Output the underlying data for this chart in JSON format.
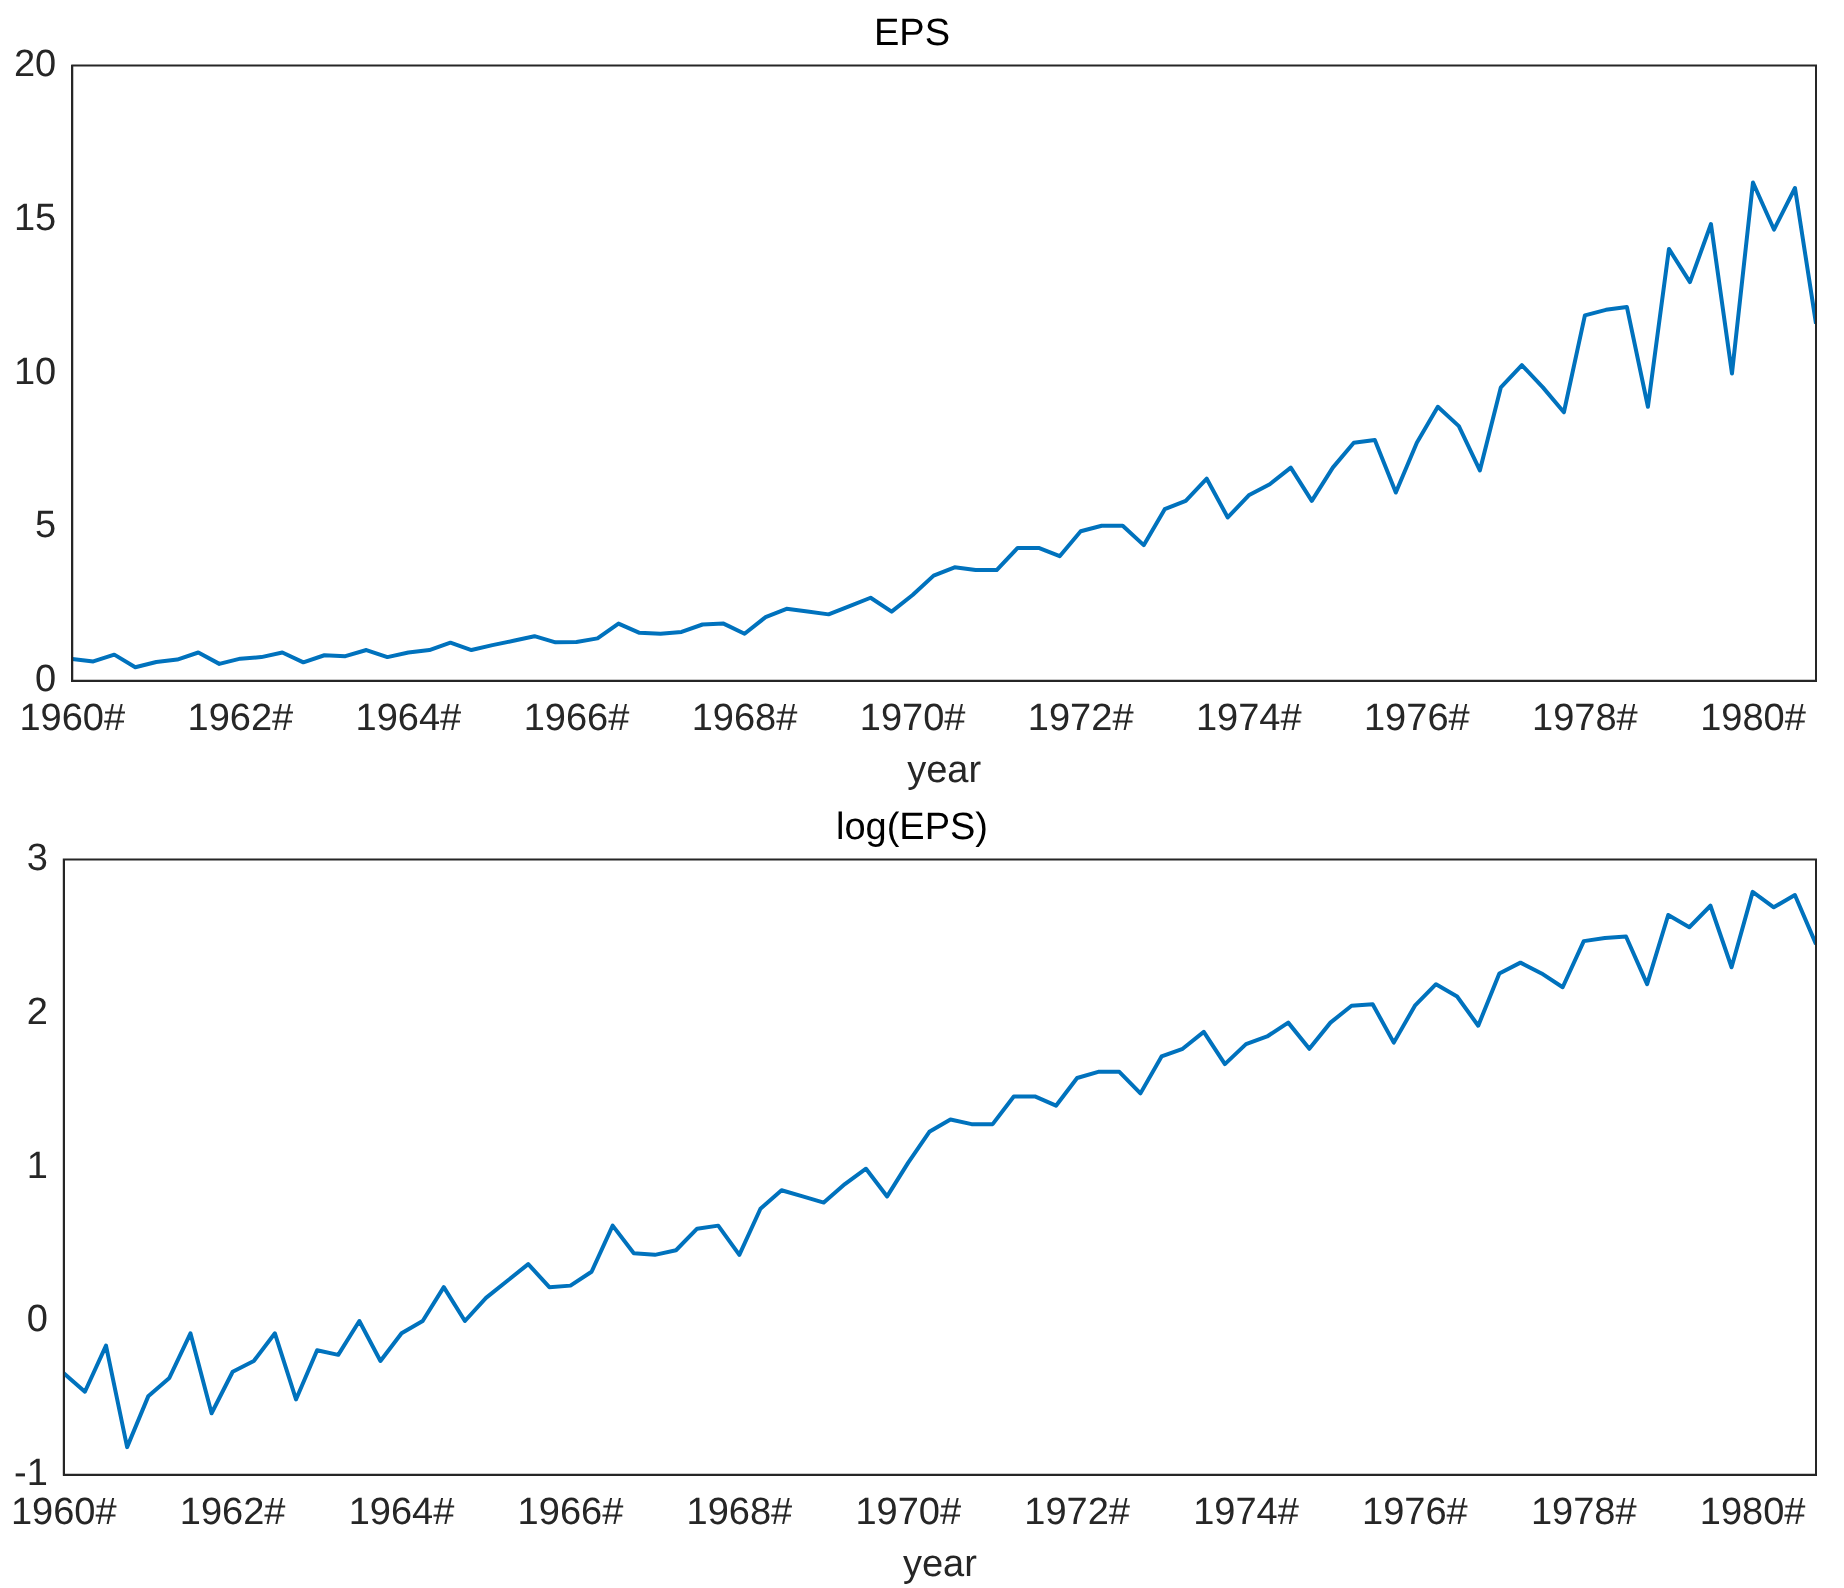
{
  "chart_data": [
    {
      "type": "line",
      "title": "EPS",
      "xlabel": "year",
      "x": [
        1960,
        1960.25,
        1960.5,
        1960.75,
        1961,
        1961.25,
        1961.5,
        1961.75,
        1962,
        1962.25,
        1962.5,
        1962.75,
        1963,
        1963.25,
        1963.5,
        1963.75,
        1964,
        1964.25,
        1964.5,
        1964.75,
        1965,
        1965.25,
        1965.5,
        1965.75,
        1966,
        1966.25,
        1966.5,
        1966.75,
        1967,
        1967.25,
        1967.5,
        1967.75,
        1968,
        1968.25,
        1968.5,
        1968.75,
        1969,
        1969.25,
        1969.5,
        1969.75,
        1970,
        1970.25,
        1970.5,
        1970.75,
        1971,
        1971.25,
        1971.5,
        1971.75,
        1972,
        1972.25,
        1972.5,
        1972.75,
        1973,
        1973.25,
        1973.5,
        1973.75,
        1974,
        1974.25,
        1974.5,
        1974.75,
        1975,
        1975.25,
        1975.5,
        1975.75,
        1976,
        1976.25,
        1976.5,
        1976.75,
        1977,
        1977.25,
        1977.5,
        1977.75,
        1978,
        1978.25,
        1978.5,
        1978.75,
        1979,
        1979.25,
        1979.5,
        1979.75,
        1980,
        1980.25,
        1980.5,
        1980.75
      ],
      "series": [
        {
          "color": "#0072bd",
          "values": [
            0.71,
            0.63,
            0.85,
            0.44,
            0.61,
            0.69,
            0.92,
            0.55,
            0.72,
            0.77,
            0.92,
            0.6,
            0.83,
            0.8,
            1.0,
            0.77,
            0.92,
            1.0,
            1.24,
            1.0,
            1.16,
            1.3,
            1.45,
            1.25,
            1.26,
            1.38,
            1.86,
            1.56,
            1.53,
            1.59,
            1.83,
            1.86,
            1.53,
            2.07,
            2.34,
            2.25,
            2.16,
            2.43,
            2.7,
            2.25,
            2.79,
            3.42,
            3.69,
            3.6,
            3.6,
            4.32,
            4.32,
            4.05,
            4.86,
            5.04,
            5.04,
            4.41,
            5.58,
            5.85,
            6.57,
            5.31,
            6.03,
            6.39,
            6.93,
            5.85,
            6.93,
            7.74,
            7.83,
            6.12,
            7.74,
            8.91,
            8.28,
            6.84,
            9.54,
            10.26,
            9.54,
            8.73,
            11.88,
            12.06,
            12.15,
            8.91,
            14.04,
            12.96,
            14.85,
            9.99,
            16.2,
            14.67,
            16.02,
            11.61
          ]
        }
      ],
      "xlim": [
        1960,
        1980.75
      ],
      "xticks": [
        {
          "value": 1960,
          "label": "1960#"
        },
        {
          "value": 1962,
          "label": "1962#"
        },
        {
          "value": 1964,
          "label": "1964#"
        },
        {
          "value": 1966,
          "label": "1966#"
        },
        {
          "value": 1968,
          "label": "1968#"
        },
        {
          "value": 1970,
          "label": "1970#"
        },
        {
          "value": 1972,
          "label": "1972#"
        },
        {
          "value": 1974,
          "label": "1974#"
        },
        {
          "value": 1976,
          "label": "1976#"
        },
        {
          "value": 1978,
          "label": "1978#"
        },
        {
          "value": 1980,
          "label": "1980#"
        }
      ],
      "ylim": [
        0,
        20
      ],
      "yticks": [
        0,
        5,
        10,
        15,
        20
      ],
      "grid": false,
      "legend": false,
      "line_style": "solid",
      "marker": "none"
    },
    {
      "type": "line",
      "title": "log(EPS)",
      "xlabel": "year",
      "x": [
        1960,
        1960.25,
        1960.5,
        1960.75,
        1961,
        1961.25,
        1961.5,
        1961.75,
        1962,
        1962.25,
        1962.5,
        1962.75,
        1963,
        1963.25,
        1963.5,
        1963.75,
        1964,
        1964.25,
        1964.5,
        1964.75,
        1965,
        1965.25,
        1965.5,
        1965.75,
        1966,
        1966.25,
        1966.5,
        1966.75,
        1967,
        1967.25,
        1967.5,
        1967.75,
        1968,
        1968.25,
        1968.5,
        1968.75,
        1969,
        1969.25,
        1969.5,
        1969.75,
        1970,
        1970.25,
        1970.5,
        1970.75,
        1971,
        1971.25,
        1971.5,
        1971.75,
        1972,
        1972.25,
        1972.5,
        1972.75,
        1973,
        1973.25,
        1973.5,
        1973.75,
        1974,
        1974.25,
        1974.5,
        1974.75,
        1975,
        1975.25,
        1975.5,
        1975.75,
        1976,
        1976.25,
        1976.5,
        1976.75,
        1977,
        1977.25,
        1977.5,
        1977.75,
        1978,
        1978.25,
        1978.5,
        1978.75,
        1979,
        1979.25,
        1979.5,
        1979.75,
        1980,
        1980.25,
        1980.5,
        1980.75
      ],
      "series": [
        {
          "color": "#0072bd",
          "values": [
            -0.34,
            -0.46,
            -0.16,
            -0.82,
            -0.49,
            -0.37,
            -0.08,
            -0.6,
            -0.33,
            -0.26,
            -0.08,
            -0.51,
            -0.19,
            -0.22,
            0,
            -0.26,
            -0.08,
            0,
            0.22,
            0,
            0.15,
            0.26,
            0.37,
            0.22,
            0.23,
            0.32,
            0.62,
            0.44,
            0.43,
            0.46,
            0.6,
            0.62,
            0.43,
            0.73,
            0.85,
            0.81,
            0.77,
            0.89,
            0.99,
            0.81,
            1.03,
            1.23,
            1.31,
            1.28,
            1.28,
            1.46,
            1.46,
            1.4,
            1.58,
            1.62,
            1.62,
            1.48,
            1.72,
            1.77,
            1.88,
            1.67,
            1.8,
            1.85,
            1.94,
            1.77,
            1.94,
            2.05,
            2.06,
            1.81,
            2.05,
            2.19,
            2.11,
            1.92,
            2.26,
            2.33,
            2.26,
            2.17,
            2.47,
            2.49,
            2.5,
            2.19,
            2.64,
            2.56,
            2.7,
            2.3,
            2.79,
            2.69,
            2.77,
            2.45
          ]
        }
      ],
      "xlim": [
        1960,
        1980.75
      ],
      "xticks": [
        {
          "value": 1960,
          "label": "1960#"
        },
        {
          "value": 1962,
          "label": "1962#"
        },
        {
          "value": 1964,
          "label": "1964#"
        },
        {
          "value": 1966,
          "label": "1966#"
        },
        {
          "value": 1968,
          "label": "1968#"
        },
        {
          "value": 1970,
          "label": "1970#"
        },
        {
          "value": 1972,
          "label": "1972#"
        },
        {
          "value": 1974,
          "label": "1974#"
        },
        {
          "value": 1976,
          "label": "1976#"
        },
        {
          "value": 1978,
          "label": "1978#"
        },
        {
          "value": 1980,
          "label": "1980#"
        }
      ],
      "ylim": [
        -1,
        3
      ],
      "yticks": [
        -1,
        0,
        1,
        2,
        3
      ],
      "grid": false,
      "legend": false,
      "line_style": "solid",
      "marker": "none"
    }
  ]
}
